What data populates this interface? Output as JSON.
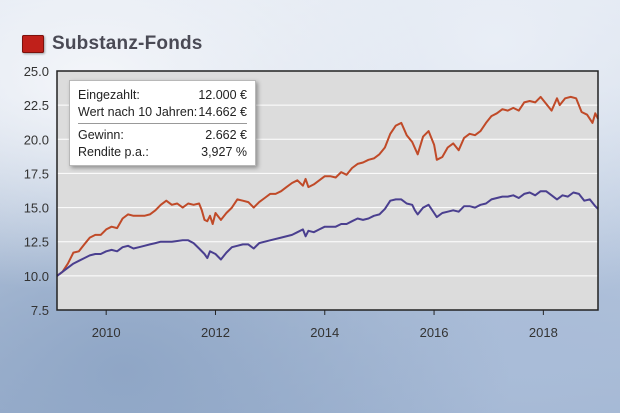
{
  "header": {
    "title": "Substanz-Fonds",
    "swatch_color": "#c0201a"
  },
  "infobox": {
    "rows_top": [
      {
        "label": "Eingezahlt:",
        "value": "12.000 €"
      },
      {
        "label": "Wert nach 10 Jahren:",
        "value": "14.662 €"
      }
    ],
    "rows_bottom": [
      {
        "label": "Gewinn:",
        "value": "2.662 €"
      },
      {
        "label": "Rendite p.a.:",
        "value": "3,927 %"
      }
    ]
  },
  "chart_data": {
    "type": "line",
    "title": "",
    "xlabel": "",
    "ylabel": "",
    "xlim": [
      2009.1,
      2019.0
    ],
    "ylim": [
      7.5,
      25.0
    ],
    "yticks": [
      7.5,
      10.0,
      12.5,
      15.0,
      17.5,
      20.0,
      22.5,
      25.0
    ],
    "ytick_labels": [
      "7.5",
      "10.0",
      "12.5",
      "15.0",
      "17.5",
      "20.0",
      "22.5",
      "25.0"
    ],
    "xticks": [
      2010,
      2012,
      2014,
      2016,
      2018
    ],
    "xtick_labels": [
      "2010",
      "2012",
      "2014",
      "2016",
      "2018"
    ],
    "grid": "horizontal",
    "background_color": "#dcdcdc",
    "series": [
      {
        "color": "#c04a28",
        "points": [
          [
            2009.1,
            10.0
          ],
          [
            2009.2,
            10.3
          ],
          [
            2009.3,
            10.9
          ],
          [
            2009.4,
            11.7
          ],
          [
            2009.5,
            11.8
          ],
          [
            2009.6,
            12.3
          ],
          [
            2009.7,
            12.8
          ],
          [
            2009.8,
            13.0
          ],
          [
            2009.9,
            13.0
          ],
          [
            2010.0,
            13.4
          ],
          [
            2010.1,
            13.6
          ],
          [
            2010.2,
            13.5
          ],
          [
            2010.3,
            14.2
          ],
          [
            2010.4,
            14.5
          ],
          [
            2010.5,
            14.4
          ],
          [
            2010.6,
            14.4
          ],
          [
            2010.7,
            14.4
          ],
          [
            2010.8,
            14.5
          ],
          [
            2010.9,
            14.8
          ],
          [
            2011.0,
            15.2
          ],
          [
            2011.1,
            15.5
          ],
          [
            2011.2,
            15.2
          ],
          [
            2011.3,
            15.3
          ],
          [
            2011.4,
            15.0
          ],
          [
            2011.5,
            15.3
          ],
          [
            2011.6,
            15.2
          ],
          [
            2011.7,
            15.3
          ],
          [
            2011.75,
            14.8
          ],
          [
            2011.8,
            14.1
          ],
          [
            2011.85,
            14.0
          ],
          [
            2011.9,
            14.4
          ],
          [
            2011.95,
            13.8
          ],
          [
            2012.0,
            14.6
          ],
          [
            2012.1,
            14.1
          ],
          [
            2012.2,
            14.6
          ],
          [
            2012.3,
            15.0
          ],
          [
            2012.4,
            15.6
          ],
          [
            2012.5,
            15.5
          ],
          [
            2012.6,
            15.4
          ],
          [
            2012.7,
            15.0
          ],
          [
            2012.8,
            15.4
          ],
          [
            2012.9,
            15.7
          ],
          [
            2013.0,
            16.0
          ],
          [
            2013.1,
            16.0
          ],
          [
            2013.2,
            16.2
          ],
          [
            2013.3,
            16.5
          ],
          [
            2013.4,
            16.8
          ],
          [
            2013.5,
            17.0
          ],
          [
            2013.6,
            16.6
          ],
          [
            2013.65,
            17.1
          ],
          [
            2013.7,
            16.5
          ],
          [
            2013.8,
            16.7
          ],
          [
            2013.9,
            17.0
          ],
          [
            2014.0,
            17.3
          ],
          [
            2014.1,
            17.3
          ],
          [
            2014.2,
            17.2
          ],
          [
            2014.3,
            17.6
          ],
          [
            2014.4,
            17.4
          ],
          [
            2014.5,
            17.9
          ],
          [
            2014.6,
            18.2
          ],
          [
            2014.7,
            18.3
          ],
          [
            2014.8,
            18.5
          ],
          [
            2014.9,
            18.6
          ],
          [
            2015.0,
            18.9
          ],
          [
            2015.1,
            19.4
          ],
          [
            2015.2,
            20.4
          ],
          [
            2015.3,
            21.0
          ],
          [
            2015.4,
            21.2
          ],
          [
            2015.5,
            20.3
          ],
          [
            2015.6,
            19.8
          ],
          [
            2015.7,
            18.9
          ],
          [
            2015.8,
            20.2
          ],
          [
            2015.9,
            20.6
          ],
          [
            2016.0,
            19.6
          ],
          [
            2016.05,
            18.5
          ],
          [
            2016.15,
            18.7
          ],
          [
            2016.25,
            19.4
          ],
          [
            2016.35,
            19.7
          ],
          [
            2016.45,
            19.2
          ],
          [
            2016.55,
            20.1
          ],
          [
            2016.65,
            20.4
          ],
          [
            2016.75,
            20.3
          ],
          [
            2016.85,
            20.6
          ],
          [
            2016.95,
            21.2
          ],
          [
            2017.05,
            21.7
          ],
          [
            2017.15,
            21.9
          ],
          [
            2017.25,
            22.2
          ],
          [
            2017.35,
            22.1
          ],
          [
            2017.45,
            22.3
          ],
          [
            2017.55,
            22.1
          ],
          [
            2017.65,
            22.7
          ],
          [
            2017.75,
            22.8
          ],
          [
            2017.85,
            22.7
          ],
          [
            2017.95,
            23.1
          ],
          [
            2018.05,
            22.6
          ],
          [
            2018.15,
            22.1
          ],
          [
            2018.25,
            23.0
          ],
          [
            2018.3,
            22.5
          ],
          [
            2018.4,
            23.0
          ],
          [
            2018.5,
            23.1
          ],
          [
            2018.6,
            23.0
          ],
          [
            2018.7,
            22.0
          ],
          [
            2018.8,
            21.8
          ],
          [
            2018.9,
            21.2
          ],
          [
            2018.95,
            21.9
          ],
          [
            2019.0,
            21.5
          ]
        ]
      },
      {
        "color": "#4a3f8f",
        "points": [
          [
            2009.1,
            10.0
          ],
          [
            2009.2,
            10.3
          ],
          [
            2009.3,
            10.6
          ],
          [
            2009.4,
            10.9
          ],
          [
            2009.5,
            11.1
          ],
          [
            2009.6,
            11.3
          ],
          [
            2009.7,
            11.5
          ],
          [
            2009.8,
            11.6
          ],
          [
            2009.9,
            11.6
          ],
          [
            2010.0,
            11.8
          ],
          [
            2010.1,
            11.9
          ],
          [
            2010.2,
            11.8
          ],
          [
            2010.3,
            12.1
          ],
          [
            2010.4,
            12.2
          ],
          [
            2010.5,
            12.0
          ],
          [
            2010.6,
            12.1
          ],
          [
            2010.7,
            12.2
          ],
          [
            2010.8,
            12.3
          ],
          [
            2010.9,
            12.4
          ],
          [
            2011.0,
            12.5
          ],
          [
            2011.2,
            12.5
          ],
          [
            2011.4,
            12.6
          ],
          [
            2011.5,
            12.6
          ],
          [
            2011.6,
            12.4
          ],
          [
            2011.7,
            12.0
          ],
          [
            2011.8,
            11.6
          ],
          [
            2011.85,
            11.3
          ],
          [
            2011.9,
            11.8
          ],
          [
            2011.95,
            11.7
          ],
          [
            2012.0,
            11.6
          ],
          [
            2012.1,
            11.2
          ],
          [
            2012.2,
            11.7
          ],
          [
            2012.3,
            12.1
          ],
          [
            2012.4,
            12.2
          ],
          [
            2012.5,
            12.3
          ],
          [
            2012.6,
            12.3
          ],
          [
            2012.7,
            12.0
          ],
          [
            2012.8,
            12.4
          ],
          [
            2012.9,
            12.5
          ],
          [
            2013.0,
            12.6
          ],
          [
            2013.2,
            12.8
          ],
          [
            2013.4,
            13.0
          ],
          [
            2013.5,
            13.2
          ],
          [
            2013.6,
            13.4
          ],
          [
            2013.65,
            12.9
          ],
          [
            2013.7,
            13.3
          ],
          [
            2013.8,
            13.2
          ],
          [
            2013.9,
            13.4
          ],
          [
            2014.0,
            13.6
          ],
          [
            2014.2,
            13.6
          ],
          [
            2014.3,
            13.8
          ],
          [
            2014.4,
            13.8
          ],
          [
            2014.5,
            14.0
          ],
          [
            2014.6,
            14.2
          ],
          [
            2014.7,
            14.1
          ],
          [
            2014.8,
            14.2
          ],
          [
            2014.9,
            14.4
          ],
          [
            2015.0,
            14.5
          ],
          [
            2015.1,
            14.9
          ],
          [
            2015.2,
            15.5
          ],
          [
            2015.3,
            15.6
          ],
          [
            2015.4,
            15.6
          ],
          [
            2015.5,
            15.3
          ],
          [
            2015.6,
            15.2
          ],
          [
            2015.65,
            14.8
          ],
          [
            2015.7,
            14.5
          ],
          [
            2015.8,
            15.0
          ],
          [
            2015.9,
            15.2
          ],
          [
            2016.0,
            14.6
          ],
          [
            2016.05,
            14.3
          ],
          [
            2016.15,
            14.6
          ],
          [
            2016.25,
            14.7
          ],
          [
            2016.35,
            14.8
          ],
          [
            2016.45,
            14.7
          ],
          [
            2016.55,
            15.1
          ],
          [
            2016.65,
            15.1
          ],
          [
            2016.75,
            15.0
          ],
          [
            2016.85,
            15.2
          ],
          [
            2016.95,
            15.3
          ],
          [
            2017.05,
            15.6
          ],
          [
            2017.15,
            15.7
          ],
          [
            2017.25,
            15.8
          ],
          [
            2017.35,
            15.8
          ],
          [
            2017.45,
            15.9
          ],
          [
            2017.55,
            15.7
          ],
          [
            2017.65,
            16.0
          ],
          [
            2017.75,
            16.1
          ],
          [
            2017.85,
            15.9
          ],
          [
            2017.95,
            16.2
          ],
          [
            2018.05,
            16.2
          ],
          [
            2018.15,
            15.9
          ],
          [
            2018.25,
            15.6
          ],
          [
            2018.35,
            15.9
          ],
          [
            2018.45,
            15.8
          ],
          [
            2018.55,
            16.1
          ],
          [
            2018.65,
            16.0
          ],
          [
            2018.75,
            15.5
          ],
          [
            2018.85,
            15.6
          ],
          [
            2018.95,
            15.1
          ],
          [
            2019.0,
            14.9
          ]
        ]
      }
    ]
  }
}
